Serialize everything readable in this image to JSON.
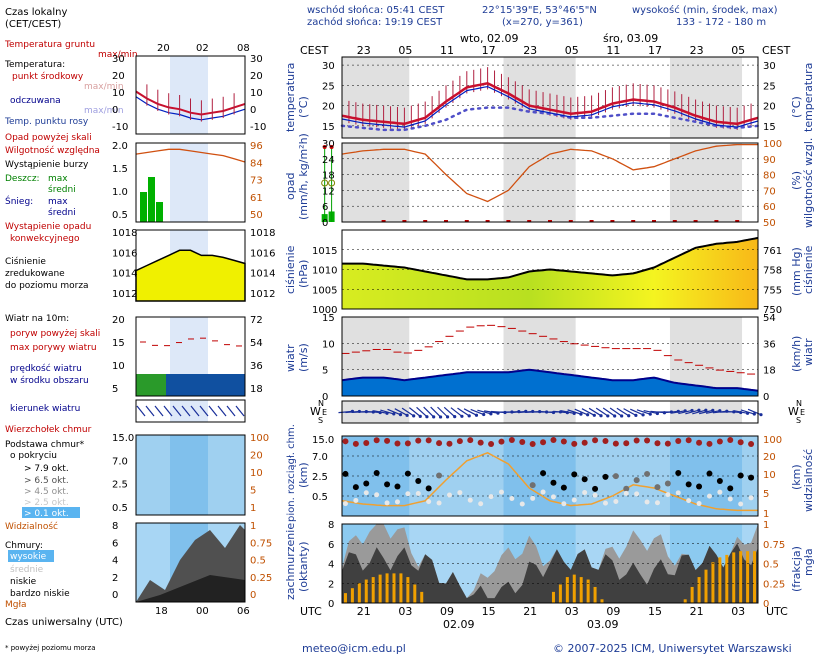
{
  "header": {
    "sunrise": "wschód słońca: 05:41 CEST",
    "sunset": "zachód słońca: 19:19 CEST",
    "coords": "22°15'39\"E, 53°46'5\"N",
    "grid": "(x=270, y=361)",
    "elev_title": "wysokość (min, środek, max)",
    "elev_values": "133 - 172 - 180 m"
  },
  "left_legend": {
    "local_time": "Czas lokalny",
    "local_time_zone": "(CET/CEST)",
    "local_ticks": [
      "20",
      "02",
      "08"
    ],
    "utc_ticks": [
      "18",
      "00",
      "06"
    ],
    "utc_label": "Czas uniwersalny (UTC)",
    "temp_ground": "Temperatura gruntu",
    "temp_ground_sub": "max/min",
    "temp": "Temperatura:",
    "temp_mid": "punkt środkowy",
    "temp_maxmin": "max/min",
    "perceived": "odczuwana",
    "perceived_sub": "max/min",
    "dew": "Temp. punktu rosy",
    "precip_above": "Opad powyżej skali",
    "humidity": "Wilgotność względna",
    "storm": "Wystąpienie burzy",
    "rain": "Deszcz:",
    "rain_max": "max",
    "rain_mid": "średni",
    "snow": "Śnieg:",
    "snow_max": "max",
    "snow_mid": "średni",
    "conv": "Wystąpienie opadu",
    "conv2": "konwekcyjnego",
    "press1": "Ciśnienie",
    "press2": "zredukowane",
    "press3": "do poziomu morza",
    "wind_title": "Wiatr na 10m:",
    "gust_above": "poryw powyżej skali",
    "gust_max": "max porywy wiatru",
    "wind_mean": "prędkość wiatru",
    "wind_mean2": "w środku obszaru",
    "wind_dir": "kierunek wiatru",
    "cloud_top": "Wierzchołek chmur",
    "cloud_base": "Podstawa chmur*",
    "cloud_base2": "o pokryciu",
    "okt_79": "> 7.9 okt.",
    "okt_65": "> 6.5 okt.",
    "okt_45": "> 4.5 okt.",
    "okt_25": "> 2.5 okt.",
    "okt_01": "> 0.1 okt.",
    "visibility": "Widzialność",
    "clouds": "Chmury:",
    "c_high": "wysokie",
    "c_mid": "średnie",
    "c_low": "niskie",
    "c_vlow": "bardzo niskie",
    "fog": "Mgła",
    "footnote": "* powyżej poziomu morza"
  },
  "left_axes": {
    "temp_left": [
      "30",
      "20",
      "10",
      "0",
      "-10"
    ],
    "temp_right": [
      "30",
      "20",
      "10",
      "0",
      "-10"
    ],
    "precip_left": [
      "2.0",
      "1.5",
      "1.0",
      "0.5"
    ],
    "precip_right": [
      "96",
      "84",
      "73",
      "61",
      "50"
    ],
    "press_left": [
      "1018",
      "1016",
      "1014",
      "1012"
    ],
    "press_right": [
      "1018",
      "1016",
      "1014",
      "1012"
    ],
    "wind_left": [
      "20",
      "15",
      "10",
      "5"
    ],
    "wind_right": [
      "72",
      "54",
      "36",
      "18"
    ],
    "cb_left": [
      "15.0",
      "7.0",
      "2.5",
      "0.5"
    ],
    "cb_right": [
      "100",
      "20",
      "10",
      "5",
      "1"
    ],
    "cl_left": [
      "8",
      "6",
      "4",
      "2",
      "0"
    ],
    "cl_right": [
      "1",
      "0.75",
      "0.5",
      "0.25",
      "0"
    ]
  },
  "main": {
    "day1": "wto, 02.09",
    "day2": "śro, 03.09",
    "cest": "CEST",
    "utc": "UTC",
    "top_ticks": [
      "23",
      "05",
      "11",
      "17",
      "23",
      "05",
      "11",
      "17",
      "23",
      "05"
    ],
    "bottom_ticks": [
      "21",
      "03",
      "09",
      "15",
      "21",
      "03",
      "09",
      "15",
      "21",
      "03"
    ],
    "date1": "02.09",
    "date2": "03.09",
    "temp_label": "temperatura",
    "temp_unit": "(°C)",
    "temp_axis": [
      "30",
      "25",
      "20",
      "15"
    ],
    "precip_label": "opad",
    "precip_unit": "(mm/h, kg/m²h)",
    "precip_axis": [
      "30",
      "24",
      "18",
      "12",
      "6",
      "0"
    ],
    "hum_label": "wilgotność wzgl.",
    "hum_unit": "(%)",
    "hum_axis": [
      "100",
      "90",
      "80",
      "70",
      "60",
      "50"
    ],
    "press_label": "ciśnienie",
    "press_unit": "(hPa)",
    "press_axis": [
      "1015",
      "1010",
      "1005",
      "1000"
    ],
    "press_mmhg_unit": "(mm Hg)",
    "press_mmhg_axis": [
      "761",
      "758",
      "755",
      "750"
    ],
    "wind_label": "wiatr",
    "wind_unit": "(m/s)",
    "wind_axis": [
      "15",
      "10",
      "5",
      "0"
    ],
    "wind_kmh_unit": "(km/h)",
    "wind_kmh_axis": [
      "54",
      "36",
      "18",
      "0"
    ],
    "compass_n": "N",
    "compass_w": "W",
    "compass_e": "E",
    "compass_s": "S",
    "cb_label": "pion. rozciągł. chm.",
    "cb_unit": "(km)",
    "cb_axis": [
      "15.0",
      "7.0",
      "2.5",
      "0.5"
    ],
    "vis_label": "widzialność",
    "vis_unit": "(km)",
    "vis_axis": [
      "100",
      "20",
      "10",
      "5",
      "1"
    ],
    "cl_label": "zachmurzenie",
    "cl_unit": "(oktanty)",
    "cl_axis": [
      "8",
      "6",
      "4",
      "2",
      "0"
    ],
    "fog_label": "mgła",
    "fog_unit": "(frakcja)",
    "fog_axis": [
      "1",
      "0.75",
      "0.5",
      "0.25",
      "0"
    ]
  },
  "footer": {
    "email": "meteo@icm.edu.pl",
    "copyright": "© 2007-2025 ICM, Uniwersytet Warszawski"
  },
  "colors": {
    "temp": "#c8102e",
    "perceived": "#0020c0",
    "dew": "#5050c8",
    "humidity": "#d05010",
    "precip": "#00b000",
    "pressure_fill": "#f0f000",
    "wind_fill": "#0070d0",
    "night_band": "#e0e0e0"
  },
  "chart_data": {
    "type": "line",
    "x_hours_utc": [
      18,
      21,
      0,
      3,
      6,
      9,
      12,
      15,
      18,
      21,
      0,
      3,
      6,
      9,
      12,
      15,
      18,
      21,
      0,
      3,
      6
    ],
    "series": [
      {
        "name": "temperatura",
        "unit": "°C",
        "values": [
          17.5,
          16.5,
          16,
          15.5,
          17,
          21,
          24.5,
          25.5,
          23,
          20,
          19,
          18,
          18.5,
          20.5,
          21.5,
          21,
          19.5,
          17.5,
          16,
          15.5,
          17
        ]
      },
      {
        "name": "Temp. punktu rosy",
        "unit": "°C",
        "values": [
          15,
          14.5,
          14,
          14,
          15,
          16.5,
          19,
          19.5,
          19.5,
          18.5,
          18,
          17,
          17,
          17.5,
          18,
          18,
          17,
          16,
          15,
          14.5,
          15
        ]
      },
      {
        "name": "wilgotność wzgl.",
        "unit": "%",
        "values": [
          93,
          95,
          96,
          96,
          93,
          80,
          68,
          63,
          70,
          85,
          93,
          96,
          95,
          90,
          83,
          85,
          90,
          95,
          98,
          99,
          99
        ]
      },
      {
        "name": "ciśnienie",
        "unit": "hPa",
        "values": [
          1011.5,
          1011.5,
          1011,
          1010.5,
          1009.5,
          1008.5,
          1007.5,
          1007.5,
          1008,
          1009.5,
          1010,
          1009.5,
          1009,
          1008.5,
          1009,
          1010.5,
          1013,
          1015.5,
          1016.5,
          1017,
          1018
        ]
      },
      {
        "name": "prędkość wiatru",
        "unit": "m/s",
        "values": [
          3,
          3.5,
          3.5,
          3,
          3.5,
          4,
          4.5,
          4.5,
          4.5,
          5,
          4.5,
          4,
          3.5,
          3,
          3,
          3.5,
          2.5,
          2,
          1.5,
          1.5,
          1
        ]
      },
      {
        "name": "max porywy wiatru",
        "unit": "m/s",
        "values": [
          8,
          8.5,
          9,
          8,
          9,
          11,
          13,
          13.5,
          13,
          12,
          11,
          10,
          9.5,
          9,
          9,
          9,
          7,
          6,
          5,
          4.5,
          4
        ]
      }
    ],
    "precip_events_utc": [
      {
        "t": 15.5,
        "value": 1.2
      },
      {
        "t": 16.5,
        "value": 1.6
      }
    ],
    "ylim_temp": [
      12,
      32
    ],
    "ylim_precip": [
      0,
      30
    ],
    "ylim_pressure": [
      1000,
      1020
    ],
    "ylim_wind": [
      0,
      15
    ]
  }
}
